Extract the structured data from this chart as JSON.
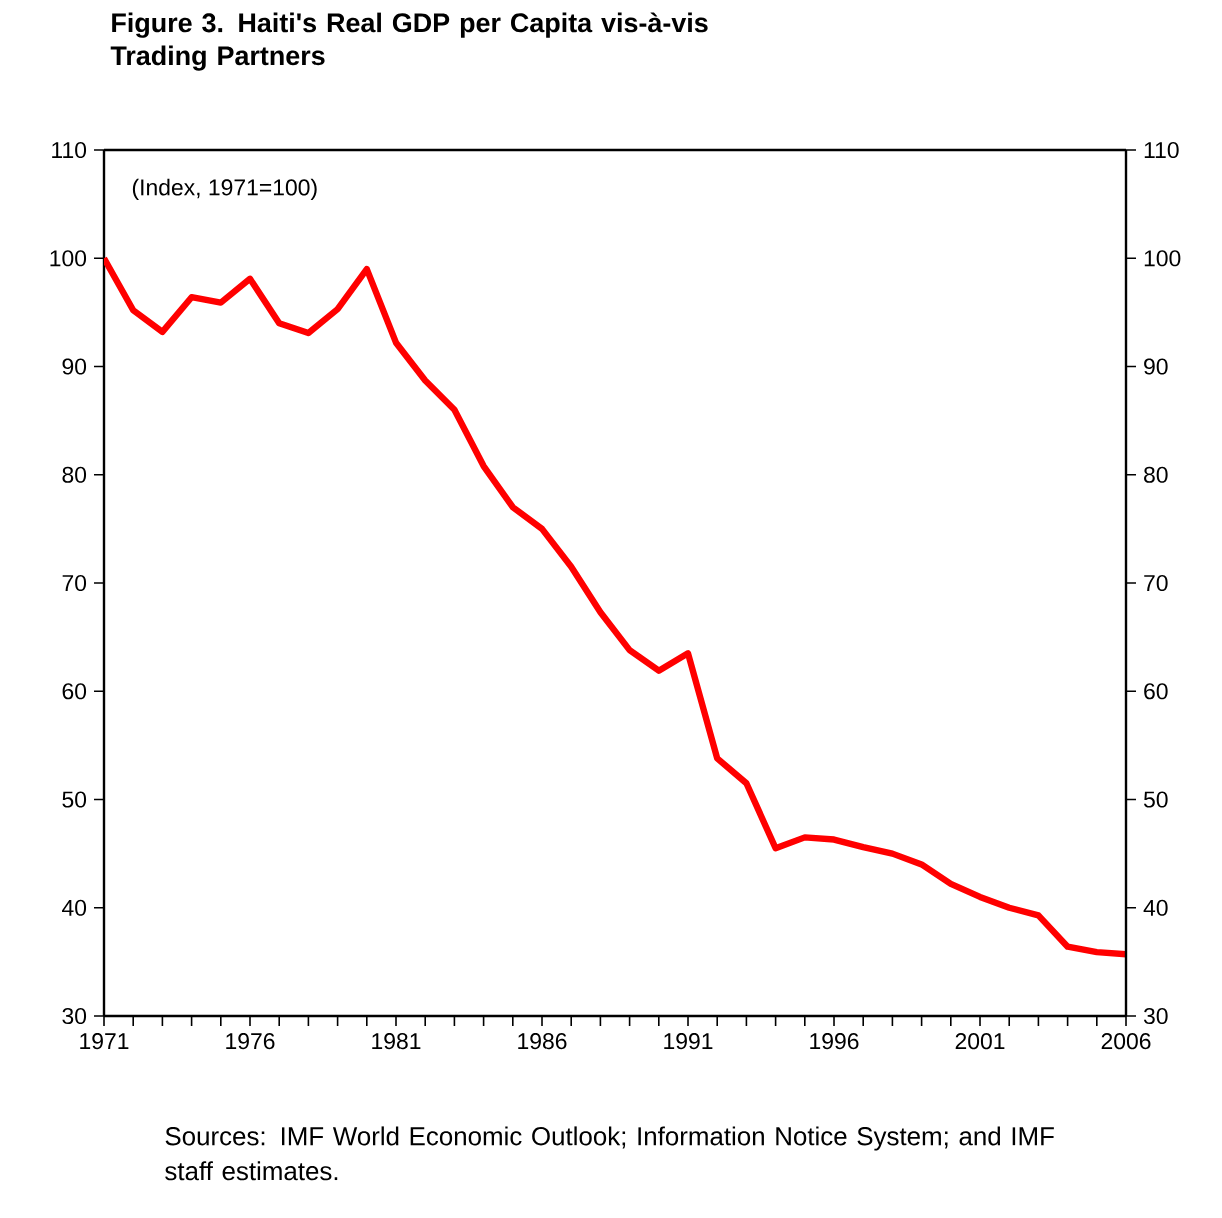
{
  "chart_data": {
    "type": "line",
    "title": "Figure 3. Haiti's Real GDP per Capita vis-à-vis Trading Partners",
    "annotations": [
      "(Index, 1971=100)",
      "Sources: IMF World Economic Outlook; Information Notice System; and IMF staff estimates."
    ],
    "x": [
      1971,
      1972,
      1973,
      1974,
      1975,
      1976,
      1977,
      1978,
      1979,
      1980,
      1981,
      1982,
      1983,
      1984,
      1985,
      1986,
      1987,
      1988,
      1989,
      1990,
      1991,
      1992,
      1993,
      1994,
      1995,
      1996,
      1997,
      1998,
      1999,
      2000,
      2001,
      2002,
      2003,
      2004,
      2005,
      2006
    ],
    "series": [
      {
        "color": "#ff0000",
        "values": [
          100,
          95.2,
          93.2,
          96.4,
          95.9,
          98.1,
          94,
          93.1,
          95.3,
          99,
          92.2,
          88.7,
          86,
          80.8,
          77,
          75,
          71.5,
          67.3,
          63.8,
          61.9,
          63.5,
          53.8,
          51.5,
          45.5,
          46.5,
          46.3,
          45.6,
          45,
          44,
          42.2,
          41,
          40,
          39.3,
          36.4,
          35.9,
          35.7
        ]
      }
    ],
    "xlim": [
      1971,
      2006
    ],
    "xticks": [
      1971,
      {
        "value": 1972,
        "label": null
      },
      {
        "value": 1973,
        "label": null
      },
      {
        "value": 1974,
        "label": null
      },
      {
        "value": 1975,
        "label": null
      },
      1976,
      {
        "value": 1977,
        "label": null
      },
      {
        "value": 1978,
        "label": null
      },
      {
        "value": 1979,
        "label": null
      },
      {
        "value": 1980,
        "label": null
      },
      1981,
      {
        "value": 1982,
        "label": null
      },
      {
        "value": 1983,
        "label": null
      },
      {
        "value": 1984,
        "label": null
      },
      {
        "value": 1985,
        "label": null
      },
      1986,
      {
        "value": 1987,
        "label": null
      },
      {
        "value": 1988,
        "label": null
      },
      {
        "value": 1989,
        "label": null
      },
      {
        "value": 1990,
        "label": null
      },
      1991,
      {
        "value": 1992,
        "label": null
      },
      {
        "value": 1993,
        "label": null
      },
      {
        "value": 1994,
        "label": null
      },
      {
        "value": 1995,
        "label": null
      },
      1996,
      {
        "value": 1997,
        "label": null
      },
      {
        "value": 1998,
        "label": null
      },
      {
        "value": 1999,
        "label": null
      },
      {
        "value": 2000,
        "label": null
      },
      2001,
      {
        "value": 2002,
        "label": null
      },
      {
        "value": 2003,
        "label": null
      },
      {
        "value": 2004,
        "label": null
      },
      {
        "value": 2005,
        "label": null
      },
      2006
    ],
    "ylim": [
      30,
      110
    ],
    "yticks": [
      30,
      40,
      50,
      60,
      70,
      80,
      90,
      100,
      110
    ],
    "y2lim": [
      30,
      110
    ],
    "y2ticks": [
      30,
      40,
      50,
      60,
      70,
      80,
      90,
      100,
      110
    ],
    "grid": false,
    "marker": "none",
    "line_style": "solid"
  }
}
